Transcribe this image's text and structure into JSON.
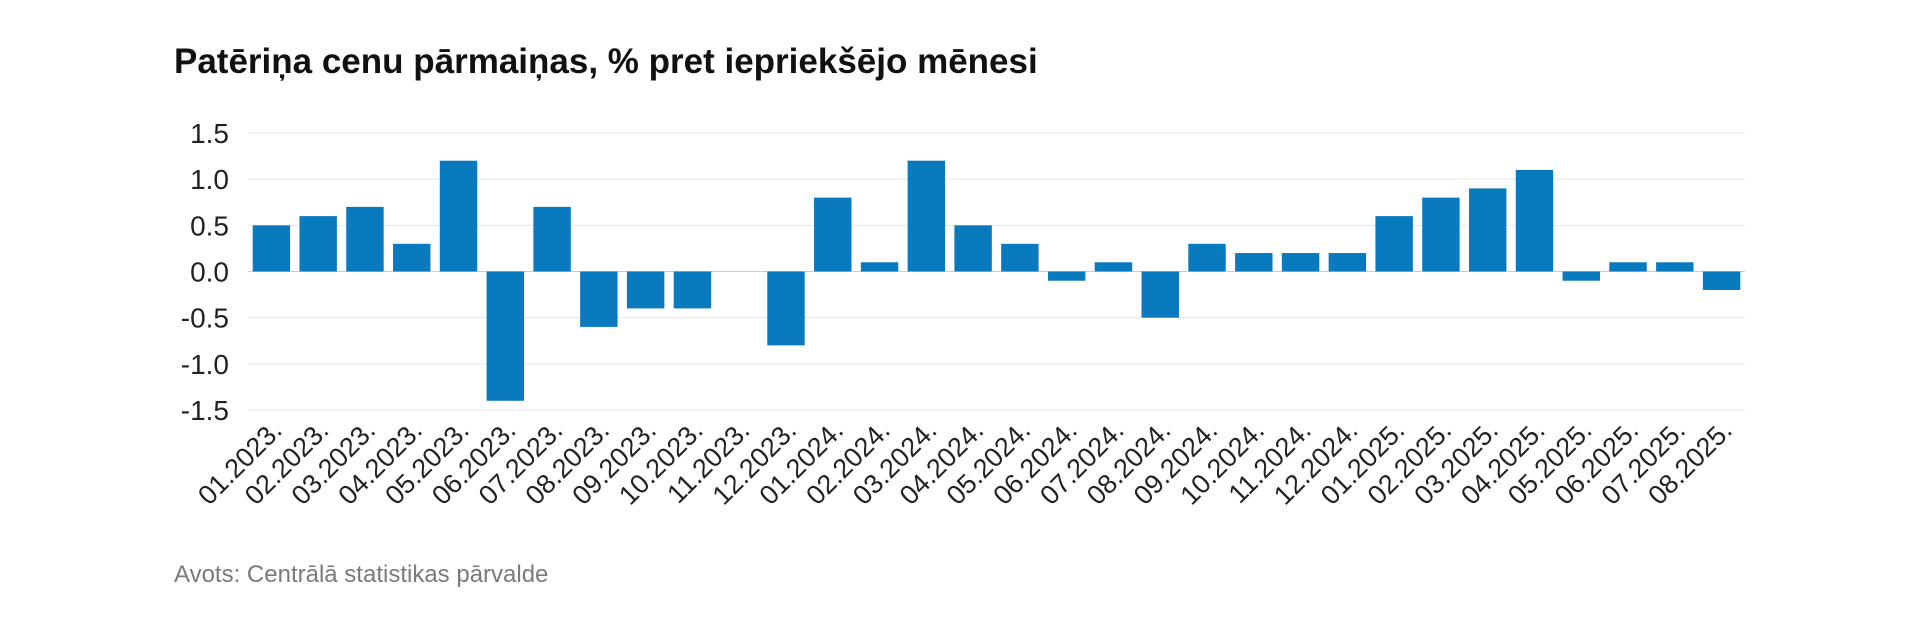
{
  "title": "Patēriņa cenu pārmaiņas, % pret iepriekšējo mēnesi",
  "source": "Avots: Centrālā statistikas pārvalde",
  "colors": {
    "bar": "#0a7abf",
    "grid": "#e6e6e6",
    "zero_line": "#cccccc",
    "text": "#222222"
  },
  "chart_data": {
    "type": "bar",
    "categories": [
      "01.2023.",
      "02.2023.",
      "03.2023.",
      "04.2023.",
      "05.2023.",
      "06.2023.",
      "07.2023.",
      "08.2023.",
      "09.2023.",
      "10.2023.",
      "11.2023.",
      "12.2023.",
      "01.2024.",
      "02.2024.",
      "03.2024.",
      "04.2024.",
      "05.2024.",
      "06.2024.",
      "07.2024.",
      "08.2024.",
      "09.2024.",
      "10.2024.",
      "11.2024.",
      "12.2024.",
      "01.2025.",
      "02.2025.",
      "03.2025.",
      "04.2025.",
      "05.2025.",
      "06.2025.",
      "07.2025.",
      "08.2025."
    ],
    "values": [
      0.5,
      0.6,
      0.7,
      0.3,
      1.2,
      -1.4,
      0.7,
      -0.6,
      -0.4,
      -0.4,
      0.0,
      -0.8,
      0.8,
      0.1,
      1.2,
      0.5,
      0.3,
      -0.1,
      0.1,
      -0.5,
      0.3,
      0.2,
      0.2,
      0.2,
      0.6,
      0.8,
      0.9,
      1.1,
      -0.1,
      0.1,
      0.1,
      -0.2
    ],
    "ylim": [
      -1.5,
      1.5
    ],
    "yticks": [
      "1.5",
      "1.0",
      "0.5",
      "0.0",
      "-0.5",
      "-1.0",
      "-1.5"
    ],
    "ytick_values": [
      1.5,
      1.0,
      0.5,
      0.0,
      -0.5,
      -1.0,
      -1.5
    ],
    "grid": true,
    "legend": "none",
    "xlabel": "",
    "ylabel": ""
  }
}
